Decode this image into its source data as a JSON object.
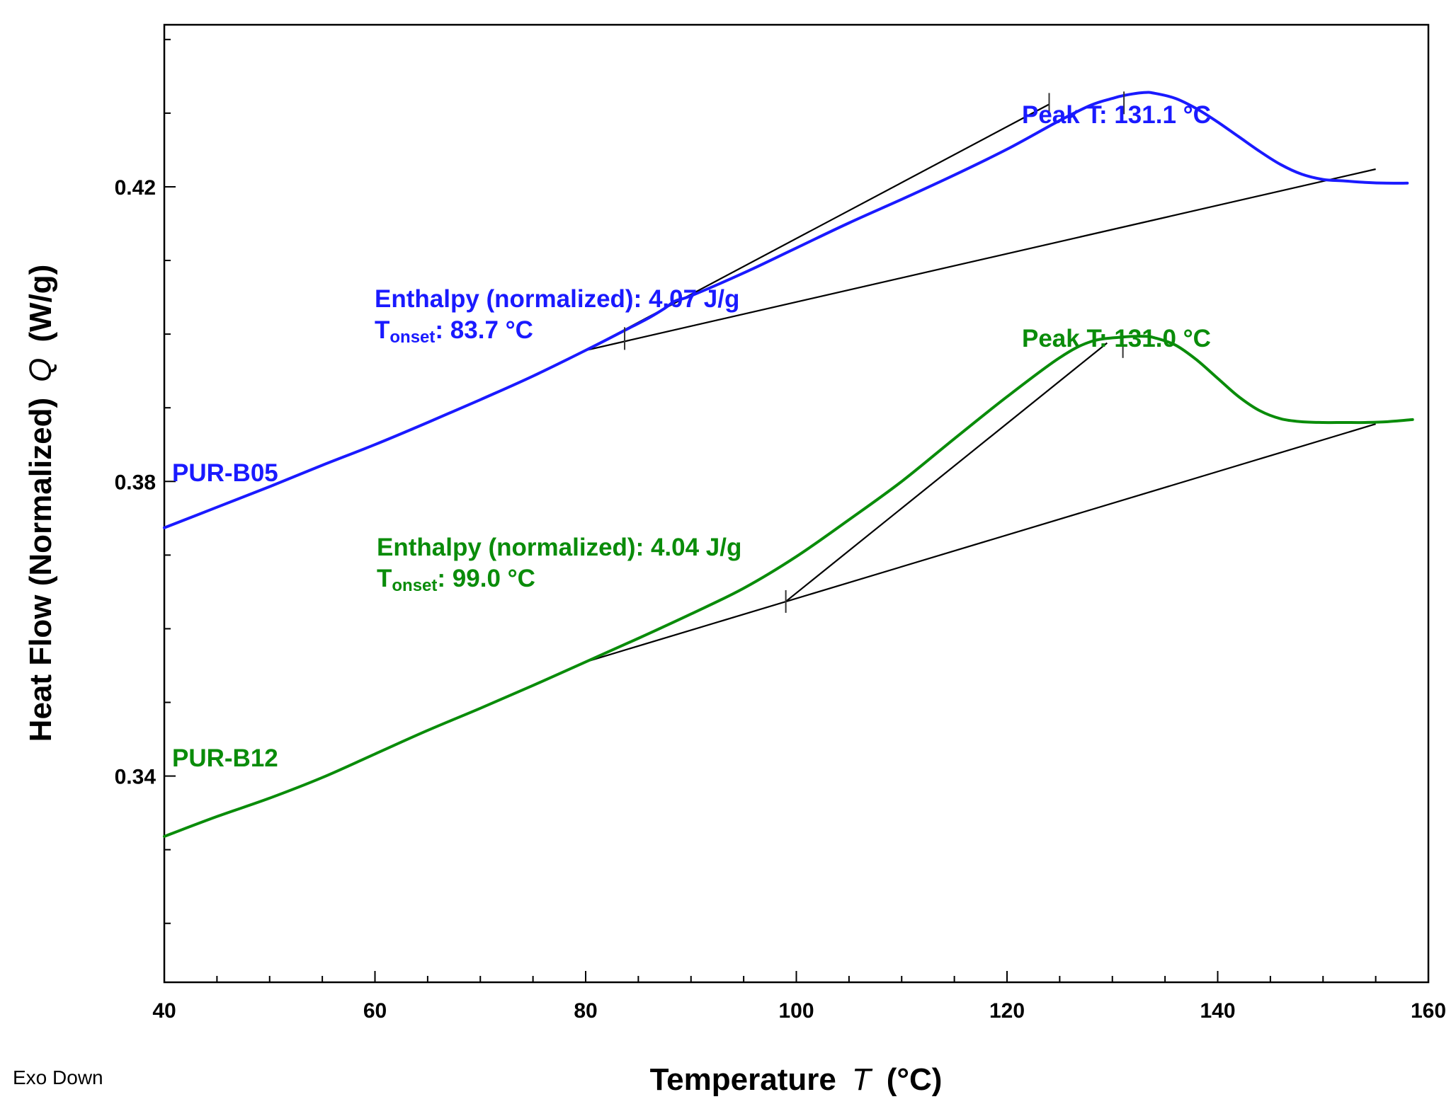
{
  "chart_data": {
    "type": "line",
    "title": "",
    "xlabel": "Temperature",
    "xlabel_symbol": "T",
    "xlabel_unit": "(°C)",
    "ylabel": "Heat Flow (Normalized)",
    "ylabel_symbol": "Q",
    "ylabel_unit": "(W/g)",
    "footer_note": "Exo Down",
    "xlim": [
      40,
      160
    ],
    "ylim": [
      0.312,
      0.442
    ],
    "x_ticks": [
      40,
      60,
      80,
      100,
      120,
      140,
      160
    ],
    "x_tick_labels": [
      "40",
      "60",
      "80",
      "100",
      "120",
      "140",
      "160"
    ],
    "y_ticks": [
      0.34,
      0.38,
      0.42
    ],
    "y_tick_labels": [
      "0.34",
      "0.38",
      "0.42"
    ],
    "grid": false,
    "series": [
      {
        "name": "PUR-B05",
        "color": "#1a1aff",
        "x": [
          40,
          45,
          50,
          55,
          60,
          65,
          70,
          75,
          80,
          83.7,
          86,
          87.5,
          88.5,
          90,
          95,
          100,
          105,
          110,
          115,
          120,
          125,
          128,
          130,
          131.1,
          133,
          134,
          136,
          138,
          140,
          142,
          144,
          146,
          148,
          150,
          152,
          154,
          156,
          158
        ],
        "values": [
          0.3737,
          0.3765,
          0.3793,
          0.3822,
          0.385,
          0.388,
          0.3911,
          0.3943,
          0.3978,
          0.4005,
          0.4022,
          0.4035,
          0.4045,
          0.4052,
          0.4083,
          0.4117,
          0.4151,
          0.4183,
          0.4216,
          0.4251,
          0.429,
          0.4311,
          0.432,
          0.4324,
          0.4328,
          0.4327,
          0.432,
          0.4306,
          0.4288,
          0.4268,
          0.4248,
          0.423,
          0.4217,
          0.421,
          0.4208,
          0.4206,
          0.4205,
          0.4205
        ]
      },
      {
        "name": "PUR-B12",
        "color": "#0a8c0a",
        "x": [
          40,
          45,
          50,
          55,
          60,
          65,
          70,
          75,
          80,
          85,
          90,
          95,
          100,
          105,
          110,
          115,
          120,
          125,
          128,
          131,
          133,
          134,
          136,
          138,
          140,
          142,
          144,
          146,
          148,
          150,
          152,
          154,
          156,
          158.5
        ],
        "values": [
          0.3318,
          0.3345,
          0.337,
          0.3398,
          0.343,
          0.3462,
          0.3492,
          0.3523,
          0.3555,
          0.3587,
          0.362,
          0.3655,
          0.3698,
          0.3748,
          0.38,
          0.3858,
          0.3915,
          0.3968,
          0.399,
          0.3996,
          0.3997,
          0.3995,
          0.3985,
          0.3965,
          0.394,
          0.3915,
          0.3896,
          0.3885,
          0.3881,
          0.388,
          0.388,
          0.388,
          0.3881,
          0.3884
        ]
      }
    ],
    "construction_lines": [
      {
        "name": "b05-baseline",
        "x": [
          80,
          155
        ],
        "y": [
          0.3978,
          0.4224
        ]
      },
      {
        "name": "b05-tangent",
        "x": [
          80,
          124
        ],
        "y": [
          0.3978,
          0.4312
        ]
      },
      {
        "name": "b12-baseline",
        "x": [
          80,
          155
        ],
        "y": [
          0.3555,
          0.3878
        ]
      },
      {
        "name": "b12-tangent",
        "x": [
          99,
          129.5
        ],
        "y": [
          0.3637,
          0.3988
        ]
      }
    ],
    "markers": [
      {
        "name": "b05-onset-tick",
        "x": 83.7,
        "y": 0.3994
      },
      {
        "name": "b05-tangent-end-tick",
        "x": 124,
        "y": 0.4312
      },
      {
        "name": "b05-peak-tick",
        "x": 131.1,
        "y": 0.4314
      },
      {
        "name": "b12-onset-tick",
        "x": 99,
        "y": 0.3637
      },
      {
        "name": "b12-peak-tick",
        "x": 131,
        "y": 0.3983
      }
    ],
    "annotations": {
      "b05_label": "PUR-B05",
      "b12_label": "PUR-B12",
      "b05_peak": "Peak T: 131.1 °C",
      "b12_peak": "Peak T: 131.0 °C",
      "b05_enthalpy": "Enthalpy (normalized): 4.07 J/g",
      "b12_enthalpy": "Enthalpy (normalized): 4.04 J/g",
      "tonset_T": "T",
      "tonset_sub": "onset",
      "b05_tonset_value": ": 83.7 °C",
      "b12_tonset_value": ": 99.0 °C"
    }
  }
}
